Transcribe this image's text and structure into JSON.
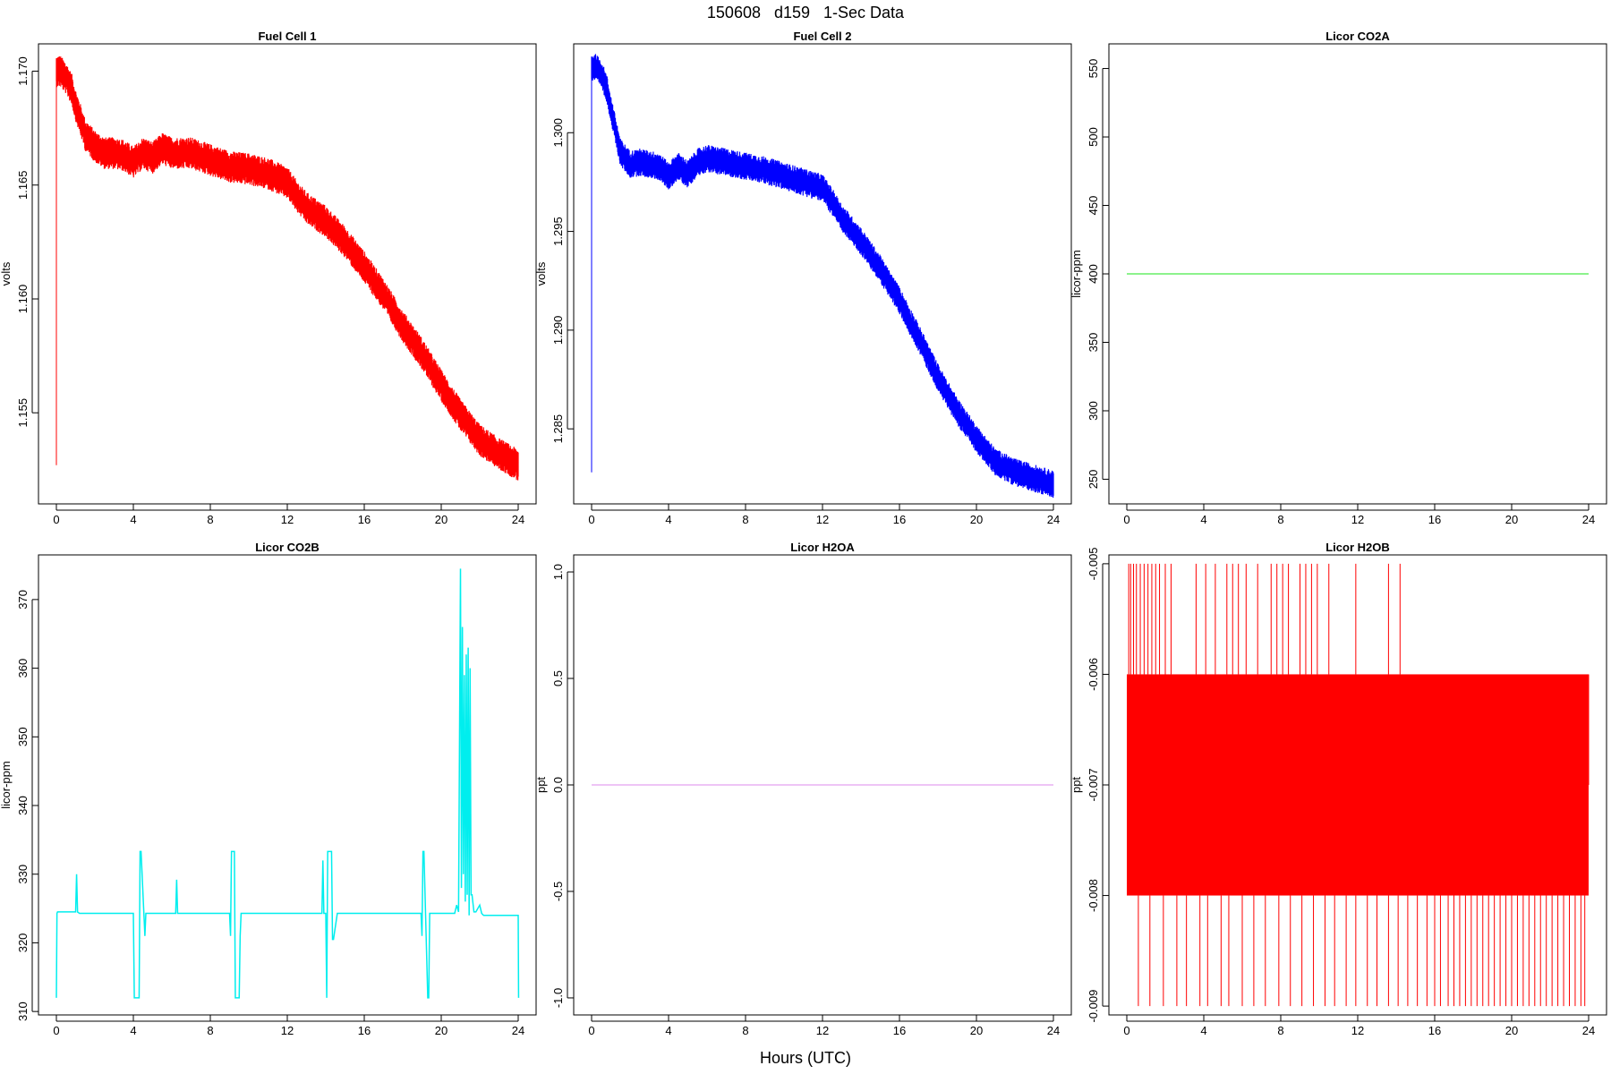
{
  "page_title": "150608   d159   1-Sec Data",
  "x_caption": "Hours (UTC)",
  "chart_data": [
    {
      "type": "line",
      "title": "Fuel Cell 1",
      "ylabel": "volts",
      "color": "#ff0000",
      "xlim": [
        0,
        24
      ],
      "ylim": [
        1.151,
        1.1712
      ],
      "x_ticks": [
        0,
        4,
        8,
        12,
        16,
        20,
        24
      ],
      "y_ticks": [
        1.155,
        1.16,
        1.165,
        1.17
      ],
      "y_tick_labels": [
        "1.155",
        "1.160",
        "1.165",
        "1.170"
      ],
      "initial_spike": [
        1.1527,
        1.1698
      ],
      "x": [
        0,
        0.2,
        0.5,
        0.8,
        1.0,
        1.2,
        1.5,
        2.0,
        2.5,
        3.0,
        3.5,
        4.0,
        4.5,
        5.0,
        5.5,
        6.0,
        7.0,
        8.0,
        9.0,
        10.0,
        11.0,
        12.0,
        12.5,
        13.0,
        14.0,
        15.0,
        16.0,
        17.0,
        18.0,
        19.0,
        20.0,
        21.0,
        22.0,
        23.0,
        24.0
      ],
      "y": [
        1.17,
        1.17,
        1.1697,
        1.1692,
        1.1685,
        1.168,
        1.1672,
        1.1667,
        1.1664,
        1.1664,
        1.1663,
        1.166,
        1.1664,
        1.1662,
        1.1666,
        1.1664,
        1.1664,
        1.1661,
        1.1658,
        1.1657,
        1.1655,
        1.1651,
        1.1645,
        1.164,
        1.1634,
        1.1625,
        1.1614,
        1.1602,
        1.1588,
        1.1576,
        1.1562,
        1.1549,
        1.1538,
        1.1532,
        1.1527
      ],
      "band": 0.0007,
      "line_width": 1
    },
    {
      "type": "line",
      "title": "Fuel Cell 2",
      "ylabel": "volts",
      "color": "#0000ff",
      "xlim": [
        0,
        24
      ],
      "ylim": [
        1.2812,
        1.3045
      ],
      "x_ticks": [
        0,
        4,
        8,
        12,
        16,
        20,
        24
      ],
      "y_ticks": [
        1.285,
        1.29,
        1.295,
        1.3
      ],
      "y_tick_labels": [
        "1.285",
        "1.290",
        "1.295",
        "1.300"
      ],
      "initial_spike": [
        1.2828,
        1.303
      ],
      "x": [
        0,
        0.2,
        0.5,
        0.8,
        1.0,
        1.5,
        2.0,
        2.5,
        3.0,
        3.5,
        4.0,
        4.5,
        5.0,
        5.5,
        6.0,
        7.0,
        8.0,
        9.0,
        10.0,
        11.0,
        12.0,
        12.5,
        13.0,
        14.0,
        15.0,
        16.0,
        17.0,
        18.0,
        19.0,
        20.0,
        21.0,
        22.0,
        23.0,
        24.0
      ],
      "y": [
        1.3033,
        1.3033,
        1.303,
        1.3022,
        1.3012,
        1.299,
        1.2984,
        1.2985,
        1.2984,
        1.2983,
        1.2978,
        1.2983,
        1.2979,
        1.2985,
        1.2987,
        1.2985,
        1.2983,
        1.2981,
        1.2978,
        1.2975,
        1.2972,
        1.2965,
        1.2957,
        1.2945,
        1.2931,
        1.2915,
        1.2896,
        1.2876,
        1.2859,
        1.2845,
        1.2833,
        1.2828,
        1.2825,
        1.2822
      ],
      "band": 0.0007,
      "line_width": 1
    },
    {
      "type": "line",
      "title": "Licor CO2A",
      "ylabel": "licor-ppm",
      "color": "#66ee66",
      "xlim": [
        0,
        24
      ],
      "ylim": [
        232,
        568
      ],
      "x_ticks": [
        0,
        4,
        8,
        12,
        16,
        20,
        24
      ],
      "y_ticks": [
        250,
        300,
        350,
        400,
        450,
        500,
        550
      ],
      "y_tick_labels": [
        "250",
        "300",
        "350",
        "400",
        "450",
        "500",
        "550"
      ],
      "x": [
        0,
        24
      ],
      "y": [
        400,
        400
      ],
      "band": 0,
      "line_width": 1.5
    },
    {
      "type": "line",
      "title": "Licor CO2B",
      "ylabel": "licor-ppm",
      "color": "#00eeee",
      "xlim": [
        0,
        24
      ],
      "ylim": [
        309.5,
        376.5
      ],
      "x_ticks": [
        0,
        4,
        8,
        12,
        16,
        20,
        24
      ],
      "y_ticks": [
        310,
        320,
        330,
        340,
        350,
        360,
        370
      ],
      "y_tick_labels": [
        "310",
        "320",
        "330",
        "340",
        "350",
        "360",
        "370"
      ],
      "x": [
        0,
        0.03,
        0.06,
        1.0,
        1.05,
        1.1,
        1.2,
        1.4,
        4.0,
        4.05,
        4.1,
        4.3,
        4.35,
        4.4,
        4.6,
        4.65,
        4.7,
        6.2,
        6.25,
        6.3,
        9.0,
        9.05,
        9.1,
        9.15,
        9.25,
        9.3,
        9.5,
        9.55,
        9.6,
        13.8,
        13.85,
        13.9,
        14.0,
        14.05,
        14.1,
        14.3,
        14.35,
        14.4,
        14.6,
        14.65,
        14.7,
        18.95,
        19.0,
        19.05,
        19.1,
        19.3,
        19.35,
        19.4,
        20.7,
        20.8,
        20.9,
        21.0,
        21.05,
        21.1,
        21.15,
        21.2,
        21.25,
        21.3,
        21.35,
        21.4,
        21.45,
        21.5,
        21.55,
        21.6,
        21.7,
        21.8,
        22.0,
        22.1,
        22.2,
        24.0,
        24.02
      ],
      "y": [
        312,
        324.3,
        324.5,
        324.5,
        330,
        324.5,
        324.3,
        324.3,
        324.3,
        312,
        312,
        312,
        333.3,
        333.3,
        321,
        324.3,
        324.3,
        324.3,
        329.2,
        324.3,
        324.3,
        321,
        333.3,
        333.3,
        333.3,
        312,
        312,
        321,
        324.3,
        324.3,
        332,
        324.3,
        324.3,
        312,
        333.3,
        333.3,
        320.5,
        320.5,
        324.3,
        324.3,
        324.3,
        324.3,
        321,
        333.3,
        333.3,
        312,
        312,
        324.3,
        324.3,
        325.5,
        324.5,
        374.5,
        328,
        366,
        330,
        359,
        326,
        362,
        327,
        363,
        324,
        360,
        327,
        327,
        324.5,
        324.5,
        325.5,
        324.3,
        324,
        324,
        312
      ],
      "band": 0,
      "line_width": 1.5
    },
    {
      "type": "line",
      "title": "Licor H2OA",
      "ylabel": "ppt",
      "color": "#dd88ee",
      "xlim": [
        0,
        24
      ],
      "ylim": [
        -1.08,
        1.08
      ],
      "x_ticks": [
        0,
        4,
        8,
        12,
        16,
        20,
        24
      ],
      "y_ticks": [
        -1.0,
        -0.5,
        0.0,
        0.5,
        1.0
      ],
      "y_tick_labels": [
        "-1.0",
        "-0.5",
        "0.0",
        "0.5",
        "1.0"
      ],
      "x": [
        0,
        24
      ],
      "y": [
        0,
        0
      ],
      "band": 0,
      "line_width": 1
    },
    {
      "type": "line",
      "title": "Licor H2OB",
      "ylabel": "ppt",
      "color": "#ff0000",
      "xlim": [
        0,
        24
      ],
      "ylim": [
        -0.00908,
        -0.00492
      ],
      "x_ticks": [
        0,
        4,
        8,
        12,
        16,
        20,
        24
      ],
      "y_ticks": [
        -0.009,
        -0.008,
        -0.007,
        -0.006,
        -0.005
      ],
      "y_tick_labels": [
        "-0.009",
        "-0.008",
        "-0.007",
        "-0.006",
        "-0.005"
      ],
      "block_range": [
        -0.008,
        -0.006
      ],
      "spikes_up_to": -0.005,
      "spikes_down_to": -0.009,
      "spike_hours_up": [
        0.1,
        0.2,
        0.35,
        0.5,
        0.7,
        0.9,
        1.1,
        1.3,
        1.5,
        1.7,
        2.0,
        2.3,
        3.6,
        4.1,
        4.6,
        5.2,
        5.5,
        5.8,
        6.2,
        6.8,
        7.5,
        7.8,
        8.1,
        8.4,
        9.0,
        9.3,
        9.6,
        9.9,
        10.5,
        11.9,
        13.6,
        14.2
      ],
      "spike_hours_down": [
        0.6,
        1.2,
        1.9,
        2.6,
        3.1,
        3.8,
        4.2,
        4.9,
        5.3,
        6.0,
        6.6,
        7.2,
        7.9,
        8.5,
        9.1,
        9.7,
        10.3,
        10.8,
        11.4,
        11.9,
        12.5,
        13.0,
        13.6,
        14.1,
        14.6,
        15.1,
        15.6,
        16.0,
        16.3,
        16.7,
        17.0,
        17.3,
        17.6,
        17.9,
        18.2,
        18.5,
        18.8,
        19.1,
        19.4,
        19.7,
        20.0,
        20.3,
        20.6,
        20.9,
        21.2,
        21.5,
        21.8,
        22.1,
        22.4,
        22.7,
        23.0,
        23.3,
        23.6,
        23.8
      ]
    }
  ]
}
